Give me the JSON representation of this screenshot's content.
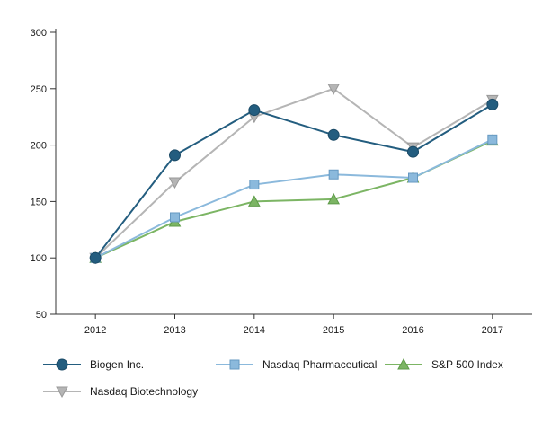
{
  "chart_data": {
    "type": "line",
    "title": "",
    "xlabel": "",
    "ylabel": "",
    "x": [
      "2012",
      "2013",
      "2014",
      "2015",
      "2016",
      "2017"
    ],
    "ylim": [
      50,
      300
    ],
    "yticks": [
      50,
      100,
      150,
      200,
      250,
      300
    ],
    "grid": false,
    "legend_position": "bottom",
    "series": [
      {
        "name": "Biogen Inc.",
        "marker": "circle",
        "color": "#235d7f",
        "edge": "#1b4a66",
        "values": [
          100,
          191,
          231,
          209,
          194,
          236
        ]
      },
      {
        "name": "Nasdaq Pharmaceutical",
        "marker": "square",
        "color": "#8bb9dc",
        "edge": "#6699c2",
        "values": [
          100,
          136,
          165,
          174,
          171,
          205
        ]
      },
      {
        "name": "S&P 500 Index",
        "marker": "triangle-up",
        "color": "#7cb564",
        "edge": "#5e9b49",
        "values": [
          100,
          132,
          150,
          152,
          171,
          204
        ]
      },
      {
        "name": "Nasdaq Biotechnology",
        "marker": "triangle-down",
        "color": "#b5b5b5",
        "edge": "#999999",
        "values": [
          100,
          167,
          225,
          250,
          198,
          240
        ]
      }
    ],
    "legend_row_break_after": 3,
    "axis_color": "#333333"
  }
}
